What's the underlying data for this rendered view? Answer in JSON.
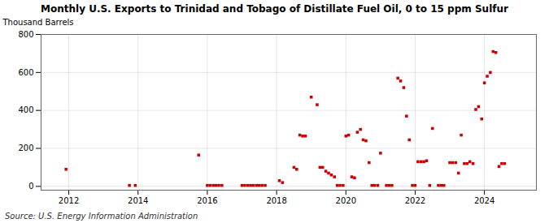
{
  "chart_data": {
    "type": "scatter",
    "title": "Monthly U.S. Exports to Trinidad and Tobago of Distillate Fuel Oil, 0 to 15 ppm Sulfur",
    "ylabel": "Thousand Barrels",
    "source": "Source: U.S. Energy Information Administration",
    "color": "#cc0000",
    "marker": "square",
    "grid": true,
    "xlim": [
      2011.2,
      2025.5
    ],
    "xticks": [
      2012,
      2014,
      2016,
      2018,
      2020,
      2022,
      2024
    ],
    "ylim": [
      -20,
      800
    ],
    "yticks": [
      0,
      200,
      400,
      600,
      800
    ],
    "x": [
      2011.92,
      2013.75,
      2013.92,
      2015.75,
      2016.0,
      2016.08,
      2016.17,
      2016.25,
      2016.33,
      2016.42,
      2017.0,
      2017.08,
      2017.17,
      2017.25,
      2017.33,
      2017.42,
      2017.5,
      2017.58,
      2017.67,
      2018.08,
      2018.17,
      2018.5,
      2018.58,
      2018.67,
      2018.75,
      2018.83,
      2019.0,
      2019.17,
      2019.25,
      2019.33,
      2019.42,
      2019.5,
      2019.58,
      2019.67,
      2019.75,
      2019.83,
      2019.92,
      2020.0,
      2020.08,
      2020.17,
      2020.25,
      2020.33,
      2020.42,
      2020.5,
      2020.58,
      2020.67,
      2020.75,
      2020.83,
      2020.92,
      2021.0,
      2021.17,
      2021.25,
      2021.33,
      2021.5,
      2021.58,
      2021.67,
      2021.75,
      2021.83,
      2021.92,
      2022.0,
      2022.08,
      2022.17,
      2022.25,
      2022.33,
      2022.42,
      2022.5,
      2022.67,
      2022.75,
      2022.83,
      2023.0,
      2023.08,
      2023.17,
      2023.25,
      2023.33,
      2023.42,
      2023.5,
      2023.58,
      2023.67,
      2023.75,
      2023.83,
      2023.92,
      2024.0,
      2024.08,
      2024.17,
      2024.25,
      2024.33,
      2024.42,
      2024.5,
      2024.58
    ],
    "values": [
      90,
      5,
      5,
      165,
      5,
      5,
      5,
      5,
      5,
      5,
      5,
      5,
      5,
      5,
      5,
      5,
      5,
      5,
      5,
      30,
      20,
      100,
      90,
      270,
      265,
      265,
      470,
      430,
      100,
      100,
      80,
      70,
      60,
      50,
      5,
      5,
      5,
      265,
      270,
      50,
      45,
      285,
      300,
      245,
      240,
      125,
      5,
      5,
      5,
      175,
      5,
      5,
      5,
      570,
      555,
      520,
      370,
      245,
      5,
      5,
      130,
      130,
      130,
      135,
      5,
      305,
      5,
      5,
      5,
      125,
      125,
      125,
      70,
      270,
      120,
      120,
      130,
      120,
      405,
      420,
      355,
      545,
      580,
      600,
      710,
      705,
      105,
      120,
      120
    ]
  }
}
